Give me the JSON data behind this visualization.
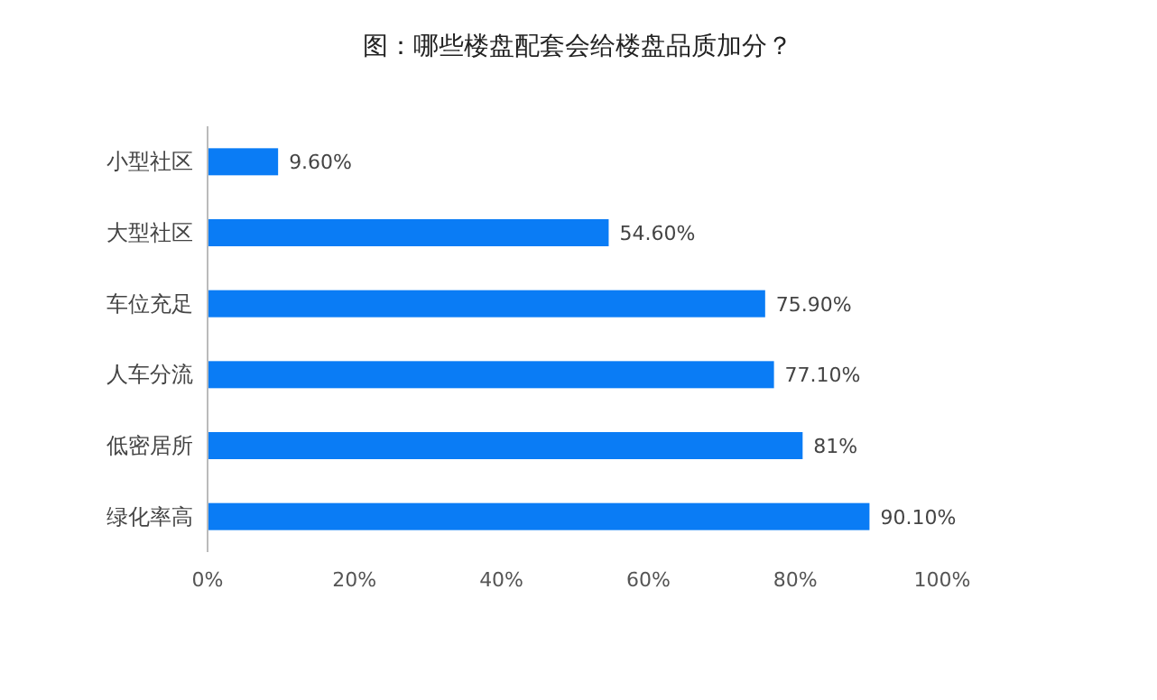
{
  "chart_data": {
    "type": "bar",
    "orientation": "horizontal",
    "title": "图：哪些楼盘配套会给楼盘品质加分？",
    "categories": [
      "小型社区",
      "大型社区",
      "车位充足",
      "人车分流",
      "低密居所",
      "绿化率高"
    ],
    "values": [
      9.6,
      54.6,
      75.9,
      77.1,
      81,
      90.1
    ],
    "value_labels": [
      "9.60%",
      "54.60%",
      "75.90%",
      "77.10%",
      "81%",
      "90.10%"
    ],
    "color": "#0a7cf5",
    "xlim": [
      0,
      100
    ],
    "xticks": [
      {
        "value": 0,
        "label": "0%"
      },
      {
        "value": 20,
        "label": "20%"
      },
      {
        "value": 40,
        "label": "40%"
      },
      {
        "value": 60,
        "label": "60%"
      },
      {
        "value": 80,
        "label": "80%"
      },
      {
        "value": 100,
        "label": "100%"
      }
    ]
  }
}
